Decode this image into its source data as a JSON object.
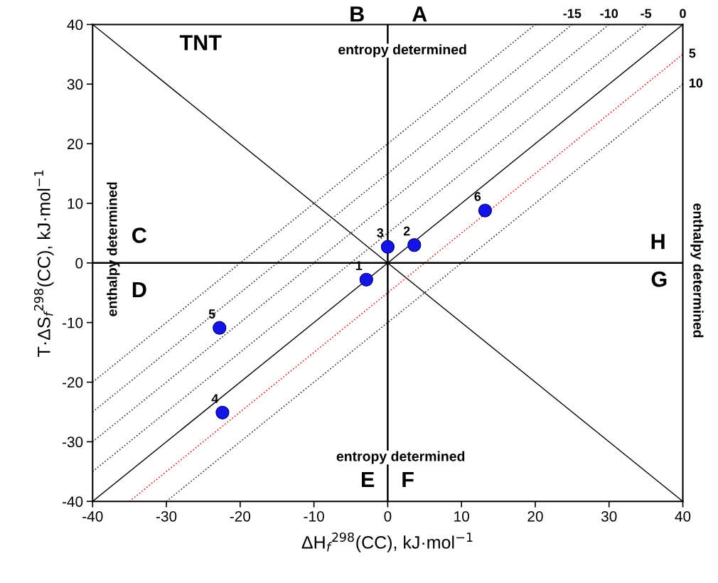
{
  "chart_data": {
    "type": "scatter",
    "xlabel": "ΔH$_{f}$$^{298}$(CC), kJ·mol$^{−1}$",
    "ylabel": "T·ΔS$_{f}$$^{298}$(CC), kJ·mol$^{−1}$",
    "xlim": [
      -40,
      40
    ],
    "ylim": [
      -40,
      40
    ],
    "xticks": [
      -40,
      -30,
      -20,
      -10,
      0,
      10,
      20,
      30,
      40
    ],
    "yticks": [
      -40,
      -30,
      -20,
      -10,
      0,
      10,
      20,
      30,
      40
    ],
    "grid": false,
    "series": [
      {
        "type": "line",
        "color": "#000000",
        "line_style": "solid",
        "marker": "none",
        "x": [
          -40,
          40
        ],
        "values": [
          40,
          -40
        ]
      },
      {
        "type": "line",
        "color": "#333333",
        "line_style": "dotted",
        "marker": "none",
        "x": [
          -40,
          20
        ],
        "values": [
          -20,
          40
        ]
      },
      {
        "type": "line",
        "name": "-15",
        "color": "#333333",
        "line_style": "dotted",
        "marker": "none",
        "x": [
          -40,
          25
        ],
        "values": [
          -25,
          40
        ]
      },
      {
        "type": "line",
        "name": "-10",
        "color": "#333333",
        "line_style": "dotted",
        "marker": "none",
        "x": [
          -40,
          30
        ],
        "values": [
          -30,
          40
        ]
      },
      {
        "type": "line",
        "name": "-5",
        "color": "#333333",
        "line_style": "dotted",
        "marker": "none",
        "x": [
          -40,
          35
        ],
        "values": [
          -35,
          40
        ]
      },
      {
        "type": "line",
        "name": "0",
        "color": "#000000",
        "line_style": "solid",
        "marker": "none",
        "x": [
          -40,
          40
        ],
        "values": [
          -40,
          40
        ]
      },
      {
        "type": "line",
        "name": "5",
        "color": "#e02020",
        "line_style": "dotted",
        "marker": "none",
        "x": [
          -35,
          40
        ],
        "values": [
          -40,
          35
        ]
      },
      {
        "type": "line",
        "name": "10",
        "color": "#333333",
        "line_style": "dotted",
        "marker": "none",
        "x": [
          -30,
          40
        ],
        "values": [
          -40,
          30
        ]
      },
      {
        "type": "line",
        "color": "#000000",
        "line_style": "solid",
        "marker": "none",
        "x": [
          0,
          0
        ],
        "values": [
          -40,
          40
        ]
      },
      {
        "type": "line",
        "color": "#000000",
        "line_style": "solid",
        "marker": "none",
        "x": [
          -40,
          40
        ],
        "values": [
          0,
          0
        ]
      },
      {
        "color": "#1414e6",
        "marker": "circle",
        "x": [
          -2.9,
          3.6,
          0,
          -22.4,
          -22.8,
          13.2
        ],
        "values": [
          -2.8,
          3.0,
          2.7,
          -25.1,
          -10.9,
          8.8
        ]
      }
    ],
    "annotations": [
      "B",
      "A",
      "entropy determined",
      "TNT",
      "C",
      "D",
      "enthalpy determined",
      "H",
      "G",
      "enthalpy determined",
      "entropy determined",
      "E",
      "F",
      {
        "text": "1",
        "x": -2.9,
        "y": -2.8
      },
      {
        "text": "2",
        "x": 3.6,
        "y": 3.0
      },
      {
        "text": "3",
        "x": 0,
        "y": 2.7
      },
      {
        "text": "4",
        "x": -22.4,
        "y": -25.1
      },
      {
        "text": "5",
        "x": -22.8,
        "y": -10.9
      },
      {
        "text": "6",
        "x": 13.2,
        "y": 8.8
      }
    ]
  }
}
